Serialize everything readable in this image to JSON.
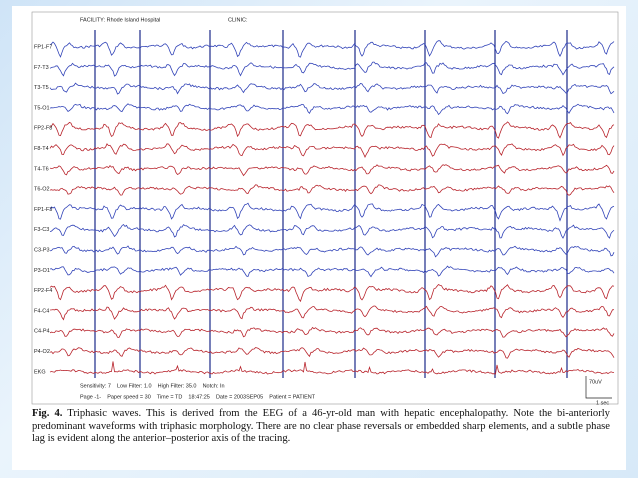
{
  "header": {
    "facility": "FACILITY: Rhode Island Hospital",
    "clinic": "CLINIC:"
  },
  "channels": [
    "FP1-F7",
    "F7-T3",
    "T3-T5",
    "T5-O1",
    "FP2-F8",
    "F8-T4",
    "T4-T6",
    "T6-O2",
    "FP1-F3",
    "F3-C3",
    "C3-P3",
    "P3-O1",
    "FP2-F4",
    "F4-C4",
    "C4-P4",
    "P4-O2",
    "EKG"
  ],
  "footer": {
    "line1": "Sensitivity: 7    Low Filter: 1.0    High Filter: 35.0    Notch: In",
    "line2": "Page -1-    Paper speed = 30    Time = TD    18:47:25    Date = 2003SEP05    Patient = PATIENT"
  },
  "scale": {
    "amplitude": "70uV",
    "time": "1 sec"
  },
  "caption": {
    "label": "Fig. 4.",
    "text": "Triphasic waves. This is derived from the EEG of a 46-yr-old man with hepatic encephalopathy. Note the bi-anteriorly predominant waveforms with triphasic morphology. There are no clear phase reversals or embedded sharp elements, and a subtle phase lag is evident along the anterior–posterior axis of the tracing."
  }
}
